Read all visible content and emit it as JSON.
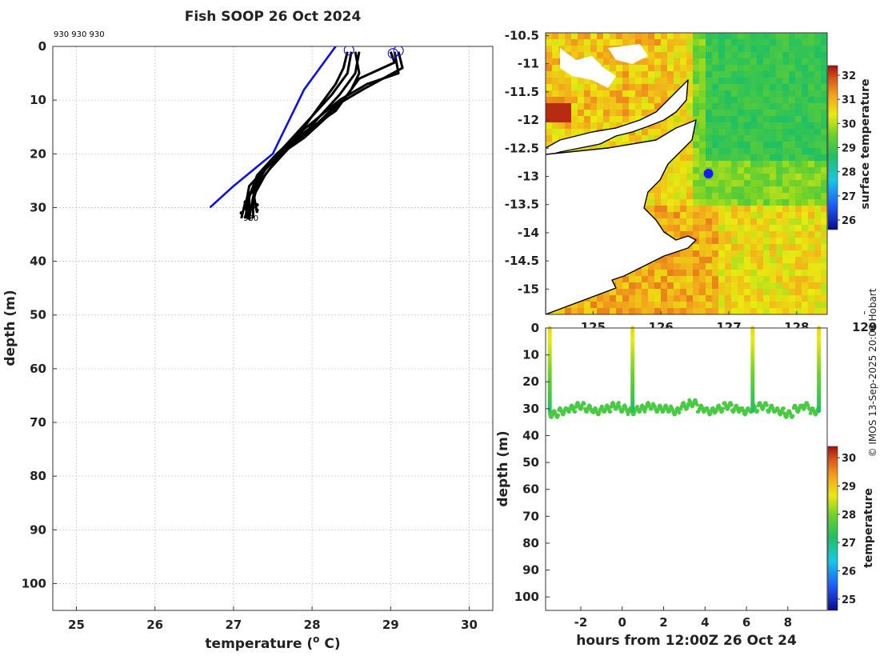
{
  "chart_data": [
    {
      "id": "profile",
      "type": "line",
      "title": "Fish SOOP 26 Oct 2024",
      "xlabel": "temperature (",
      "xlabel_sup": "o",
      "xlabel_suffix": " C)",
      "ylabel": "depth (m)",
      "xlim": [
        24.7,
        30.3
      ],
      "ylim": [
        0,
        105
      ],
      "xticks": [
        25,
        26,
        27,
        28,
        29,
        30
      ],
      "yticks": [
        0,
        10,
        20,
        30,
        40,
        50,
        60,
        70,
        80,
        90,
        100
      ],
      "top_annotation": "930 930 930",
      "bottom_annotation": "930",
      "series": [
        {
          "name": "profile 1",
          "color": "#000000",
          "points": [
            [
              28.45,
              1
            ],
            [
              28.4,
              4
            ],
            [
              28.3,
              7
            ],
            [
              28.15,
              10
            ],
            [
              27.95,
              14
            ],
            [
              27.7,
              19
            ],
            [
              27.45,
              23
            ],
            [
              27.3,
              26
            ],
            [
              27.25,
              29
            ],
            [
              27.25,
              32
            ]
          ]
        },
        {
          "name": "profile 2",
          "color": "#000000",
          "points": [
            [
              28.5,
              1
            ],
            [
              28.45,
              5
            ],
            [
              28.25,
              9
            ],
            [
              28.0,
              13
            ],
            [
              27.75,
              17
            ],
            [
              27.5,
              21
            ],
            [
              27.3,
              25
            ],
            [
              27.2,
              28
            ],
            [
              27.15,
              32
            ]
          ]
        },
        {
          "name": "profile 3",
          "color": "#000000",
          "points": [
            [
              28.6,
              1
            ],
            [
              28.55,
              5
            ],
            [
              28.35,
              9
            ],
            [
              28.1,
              13
            ],
            [
              27.85,
              16
            ],
            [
              27.55,
              20
            ],
            [
              27.3,
              24
            ],
            [
              27.2,
              28
            ],
            [
              27.2,
              32
            ]
          ]
        },
        {
          "name": "profile 4",
          "color": "#000000",
          "points": [
            [
              29.0,
              1
            ],
            [
              29.05,
              3
            ],
            [
              28.6,
              6
            ],
            [
              28.45,
              9
            ],
            [
              28.2,
              13
            ],
            [
              27.9,
              17
            ],
            [
              27.6,
              20
            ],
            [
              27.4,
              24
            ],
            [
              27.25,
              28
            ],
            [
              27.2,
              32
            ]
          ]
        },
        {
          "name": "profile 5",
          "color": "#000000",
          "points": [
            [
              29.1,
              1
            ],
            [
              29.15,
              4
            ],
            [
              28.9,
              6
            ],
            [
              28.65,
              8
            ],
            [
              28.3,
              11
            ],
            [
              27.95,
              16
            ],
            [
              27.65,
              19
            ],
            [
              27.4,
              23
            ],
            [
              27.25,
              27
            ],
            [
              27.3,
              31
            ]
          ]
        },
        {
          "name": "profile 6",
          "color": "#000000",
          "points": [
            [
              29.05,
              1
            ],
            [
              29.1,
              5
            ],
            [
              28.7,
              7
            ],
            [
              28.35,
              10
            ],
            [
              28.1,
              13
            ],
            [
              27.8,
              18
            ],
            [
              27.5,
              21
            ],
            [
              27.3,
              25
            ],
            [
              27.15,
              29
            ],
            [
              27.1,
              32
            ]
          ]
        },
        {
          "name": "profile 7",
          "color": "#000000",
          "points": [
            [
              28.55,
              1
            ],
            [
              28.6,
              5
            ],
            [
              28.5,
              8
            ],
            [
              28.3,
              12
            ],
            [
              28.0,
              15
            ],
            [
              27.7,
              18
            ],
            [
              27.45,
              22
            ],
            [
              27.2,
              26
            ],
            [
              27.15,
              30
            ],
            [
              27.2,
              32
            ]
          ]
        },
        {
          "name": "climatology",
          "color": "#1010e0",
          "points": [
            [
              28.3,
              0
            ],
            [
              27.9,
              8
            ],
            [
              27.6,
              17
            ],
            [
              27.5,
              20
            ],
            [
              27.0,
              26
            ],
            [
              26.7,
              30
            ]
          ]
        }
      ],
      "surface_markers": [
        [
          28.47,
          0.7
        ],
        [
          29.03,
          1.3
        ],
        [
          29.1,
          0.8
        ]
      ]
    },
    {
      "id": "sst_map",
      "type": "heatmap",
      "lat_ticks": [
        "-10.5",
        "-11",
        "-11.5",
        "-12",
        "-12.5",
        "-13",
        "-13.5",
        "-14",
        "-14.5",
        "-15"
      ],
      "lat_values": [
        -10.5,
        -11,
        -11.5,
        -12,
        -12.5,
        -13,
        -13.5,
        -14,
        -14.5,
        -15
      ],
      "lon_ticks": [
        "125",
        "126",
        "127",
        "128",
        "129"
      ],
      "lon_values": [
        125,
        126,
        127,
        128,
        129
      ],
      "xlim": [
        124.3,
        128.45
      ],
      "ylim": [
        -15.45,
        -10.45
      ],
      "station_marker": {
        "lon": 126.7,
        "lat": -12.95,
        "color": "#1a1aff"
      },
      "colorbar": {
        "label": "surface temperature",
        "min": 25.6,
        "max": 32.4,
        "ticks": [
          "26",
          "27",
          "28",
          "29",
          "30",
          "31",
          "32"
        ],
        "tick_values": [
          26,
          27,
          28,
          29,
          30,
          31,
          32
        ]
      }
    },
    {
      "id": "depth_time",
      "type": "scatter",
      "xlabel": "hours from 12:00Z 26 Oct 24",
      "ylabel": "depth (m)",
      "xlim": [
        -3.7,
        9.9
      ],
      "ylim": [
        0,
        105
      ],
      "xticks": [
        -2,
        0,
        2,
        4,
        6,
        8
      ],
      "yticks": [
        0,
        10,
        20,
        30,
        40,
        50,
        60,
        70,
        80,
        90,
        100
      ],
      "casts_hours": [
        -3.5,
        0.5,
        6.3,
        9.5
      ],
      "baseline_depths": [
        32,
        31,
        30,
        29,
        30,
        31,
        30,
        29,
        30,
        31,
        30,
        29,
        30,
        30,
        31,
        29,
        28,
        30,
        31,
        30,
        29,
        30,
        31,
        30,
        29,
        30,
        31,
        32,
        30,
        29,
        31,
        30
      ],
      "colorbar": {
        "label": "temperature",
        "min": 24.6,
        "max": 30.4,
        "ticks": [
          "25",
          "26",
          "27",
          "28",
          "29",
          "30"
        ],
        "tick_values": [
          25,
          26,
          27,
          28,
          29,
          30
        ]
      }
    }
  ],
  "credit": "© IMOS 13-Sep-2025 20:06 Hobart"
}
